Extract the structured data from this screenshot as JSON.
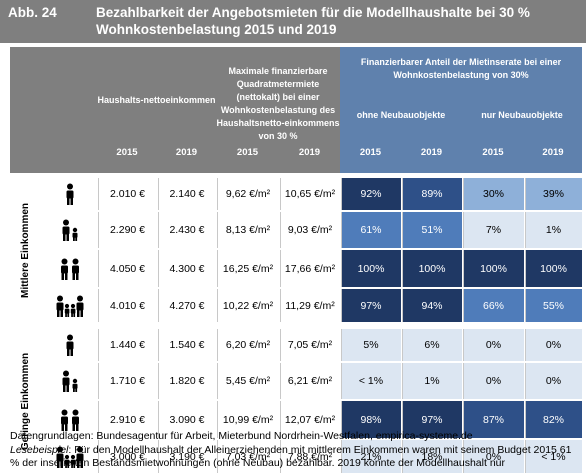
{
  "header": {
    "figure_number": "Abb. 24",
    "title": "Bezahlbarkeit der Angebotsmieten für die Modellhaushalte bei 30 % Wohnkostenbelastung 2015 und 2019"
  },
  "table": {
    "headers": {
      "income": "Haushalts-nettoeinkommen",
      "rent": "Maximale finanzierbare Quadratmetermiete (nettokalt) bei einer Wohnkostenbelastung des Haushaltsnetto-einkommens von 30 %",
      "share": "Finanzierbarer Anteil der Mietinserate bei einer Wohnkostenbelastung von 30%",
      "share_excl": "ohne Neubauobjekte",
      "share_only": "nur Neubauobjekte"
    },
    "years": [
      "2015",
      "2019",
      "2015",
      "2019",
      "2015",
      "2019",
      "2015",
      "2019"
    ],
    "groups": [
      {
        "label": "Mittlere Einkommen",
        "rows": [
          {
            "household_icon": "single-adult-icon",
            "values": [
              "2.010 €",
              "2.140 €",
              "9,62 €/m²",
              "10,65 €/m²",
              "92%",
              "89%",
              "30%",
              "39%"
            ]
          },
          {
            "household_icon": "single-parent-one-child-icon",
            "values": [
              "2.290 €",
              "2.430 €",
              "8,13 €/m²",
              "9,03 €/m²",
              "61%",
              "51%",
              "7%",
              "1%"
            ]
          },
          {
            "household_icon": "couple-icon",
            "values": [
              "4.050 €",
              "4.300 €",
              "16,25 €/m²",
              "17,66 €/m²",
              "100%",
              "100%",
              "100%",
              "100%"
            ]
          },
          {
            "household_icon": "couple-two-children-icon",
            "values": [
              "4.010 €",
              "4.270 €",
              "10,22 €/m²",
              "11,29 €/m²",
              "97%",
              "94%",
              "66%",
              "55%"
            ]
          }
        ]
      },
      {
        "label": "Geringe Einkommen",
        "rows": [
          {
            "household_icon": "single-adult-icon",
            "values": [
              "1.440 €",
              "1.540 €",
              "6,20 €/m²",
              "7,05 €/m²",
              "5%",
              "6%",
              "0%",
              "0%"
            ]
          },
          {
            "household_icon": "single-parent-one-child-icon",
            "values": [
              "1.710 €",
              "1.820 €",
              "5,45 €/m²",
              "6,21 €/m²",
              "< 1%",
              "1%",
              "0%",
              "0%"
            ]
          },
          {
            "household_icon": "couple-icon",
            "values": [
              "2.910 €",
              "3.090 €",
              "10,99 €/m²",
              "12,07 €/m²",
              "98%",
              "97%",
              "87%",
              "82%"
            ]
          },
          {
            "household_icon": "couple-two-children-icon",
            "values": [
              "3.000 €",
              "3.190 €",
              "7,03 €/m²",
              "7,88 €/m²",
              "21%",
              "18%",
              "0%",
              "< 1%"
            ]
          }
        ]
      }
    ],
    "colors": {
      "header_bg": "#7f7f7f",
      "share_header_bg": "#5f81ad",
      "dark": "#1f3864",
      "dark_medium": "#2e5088",
      "medium": "#4f7cba",
      "light_medium": "#8eb0d9",
      "light": "#dce6f2"
    }
  },
  "footer": {
    "source": "Datengrundlagen: Bundesagentur für Arbeit, Mieterbund Nordrhein-Westfalen, empirica-systeme.de",
    "lesebeispiel_label": "Lesebeispiel",
    "lesebeispiel_text": ": Für den Modellhaushalt der Alleinerziehenden mit mittlerem Einkommen waren mit seinem Budget 2015 61 % der inserierten Bestandsmietwohnungen (ohne Neubau) bezahlbar. 2019 konnte der Modellhaushalt nur"
  }
}
